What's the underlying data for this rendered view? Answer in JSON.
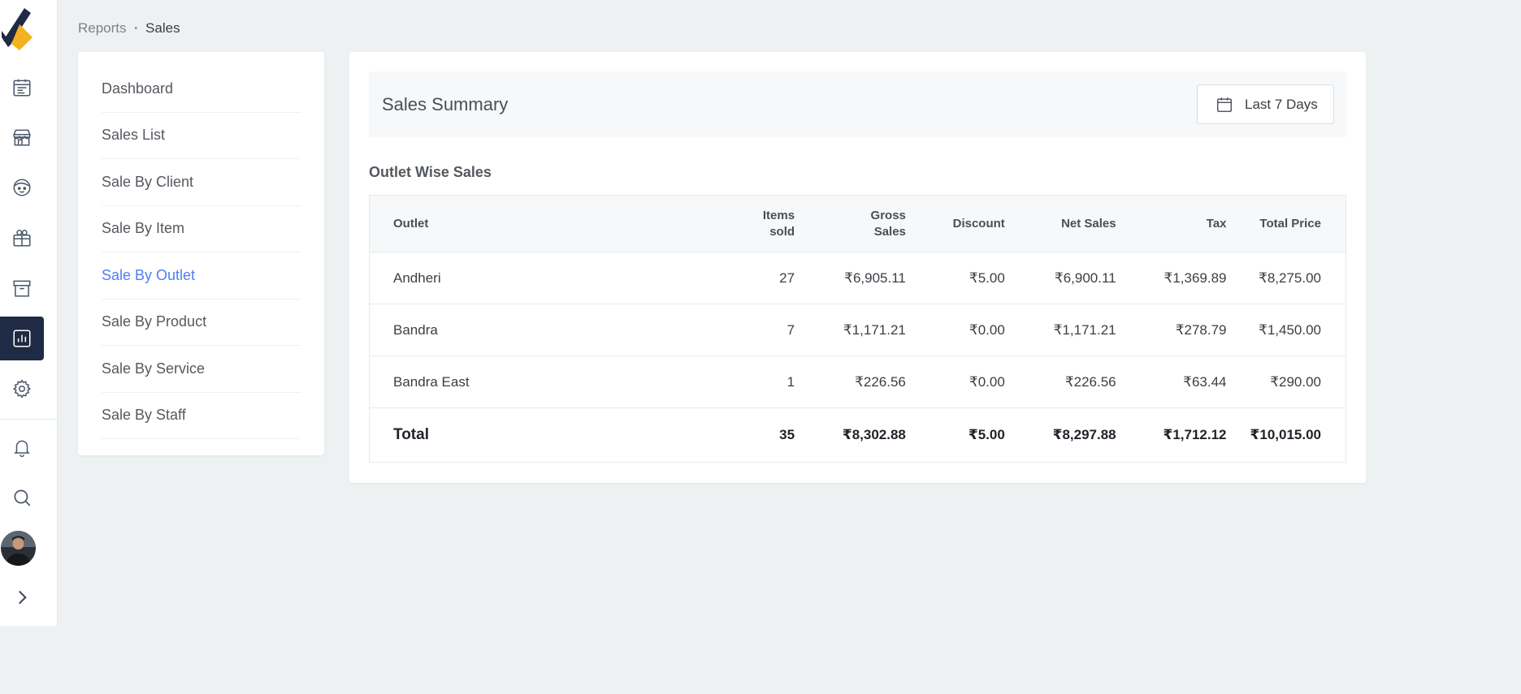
{
  "breadcrumb": {
    "parent": "Reports",
    "separator": "•",
    "current": "Sales"
  },
  "rail": {
    "icons": [
      {
        "name": "calendar-list-icon"
      },
      {
        "name": "store-icon"
      },
      {
        "name": "client-face-icon"
      },
      {
        "name": "gift-icon"
      },
      {
        "name": "archive-box-icon"
      },
      {
        "name": "reports-chart-icon",
        "active": true
      },
      {
        "name": "settings-gear-icon"
      },
      {
        "name": "bell-icon"
      },
      {
        "name": "search-icon"
      },
      {
        "name": "chevron-right-icon"
      }
    ],
    "active_color": "#1f2a44",
    "logo_colors": [
      "#1f2a44",
      "#f5b11f"
    ]
  },
  "menu": {
    "items": [
      {
        "label": "Dashboard"
      },
      {
        "label": "Sales List"
      },
      {
        "label": "Sale By Client"
      },
      {
        "label": "Sale By Item"
      },
      {
        "label": "Sale By Outlet",
        "active": true
      },
      {
        "label": "Sale By Product"
      },
      {
        "label": "Sale By Service"
      },
      {
        "label": "Sale By Staff"
      }
    ],
    "active_color": "#4f7ef5"
  },
  "summary": {
    "title": "Sales Summary",
    "date_range": "Last 7 Days"
  },
  "outlet_sales": {
    "title": "Outlet Wise Sales",
    "columns": {
      "outlet": "Outlet",
      "items_sold_line1": "Items",
      "items_sold_line2": "sold",
      "gross_line1": "Gross",
      "gross_line2": "Sales",
      "discount": "Discount",
      "net_sales": "Net Sales",
      "tax": "Tax",
      "total_price": "Total Price"
    },
    "rows": [
      {
        "outlet": "Andheri",
        "items": "27",
        "gross": "₹6,905.11",
        "discount": "₹5.00",
        "net": "₹6,900.11",
        "tax": "₹1,369.89",
        "total": "₹8,275.00"
      },
      {
        "outlet": "Bandra",
        "items": "7",
        "gross": "₹1,171.21",
        "discount": "₹0.00",
        "net": "₹1,171.21",
        "tax": "₹278.79",
        "total": "₹1,450.00"
      },
      {
        "outlet": "Bandra East",
        "items": "1",
        "gross": "₹226.56",
        "discount": "₹0.00",
        "net": "₹226.56",
        "tax": "₹63.44",
        "total": "₹290.00"
      }
    ],
    "total": {
      "outlet": "Total",
      "items": "35",
      "gross": "₹8,302.88",
      "discount": "₹5.00",
      "net": "₹8,297.88",
      "tax": "₹1,712.12",
      "total": "₹10,015.00"
    }
  }
}
